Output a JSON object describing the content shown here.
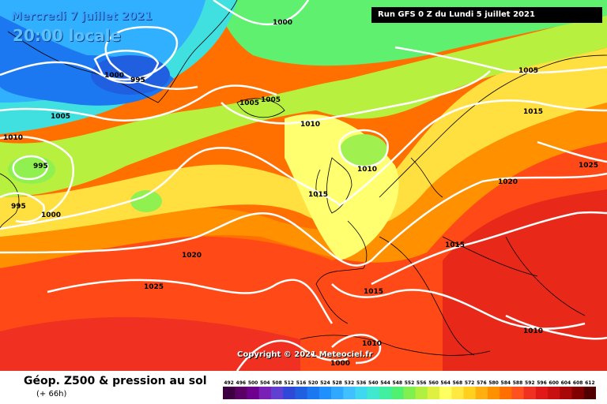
{
  "header": {
    "date": "Mercredi 7 juillet 2021",
    "local_time": "20:00 locale",
    "run": "Run GFS 0 Z du Lundi 5 juillet 2021"
  },
  "copyright": "Copyright © 2021 Meteociel.fr",
  "footer": {
    "title": "Géop. Z500 & pression au sol",
    "subtitle": "(+ 66h)"
  },
  "isobars": [
    "1000",
    "995",
    "1000",
    "1005",
    "1005",
    "1005",
    "1010",
    "1010",
    "995",
    "995",
    "1000",
    "1010",
    "1015",
    "1005",
    "1015",
    "1020",
    "1025",
    "1020",
    "1015",
    "1015",
    "1025",
    "1010",
    "1010",
    "1000"
  ],
  "legend": {
    "labels": [
      "492",
      "496",
      "500",
      "504",
      "508",
      "512",
      "516",
      "520",
      "524",
      "528",
      "532",
      "536",
      "540",
      "544",
      "548",
      "552",
      "556",
      "560",
      "564",
      "568",
      "572",
      "576",
      "580",
      "584",
      "588",
      "592",
      "596",
      "600",
      "604",
      "608",
      "612"
    ],
    "colors": [
      "#3c0040",
      "#5a0064",
      "#6e0090",
      "#7a20b4",
      "#6040d0",
      "#3048d8",
      "#2060e0",
      "#1c78f0",
      "#2090ff",
      "#30a8ff",
      "#40c0ff",
      "#40d8f0",
      "#40e8d0",
      "#40f0a0",
      "#50f070",
      "#80f050",
      "#b0f040",
      "#e0f040",
      "#ffff60",
      "#ffe840",
      "#ffd020",
      "#ffb010",
      "#ff9000",
      "#ff7000",
      "#ff5020",
      "#f03020",
      "#e01818",
      "#c81010",
      "#a80808",
      "#800000",
      "#500000"
    ]
  }
}
